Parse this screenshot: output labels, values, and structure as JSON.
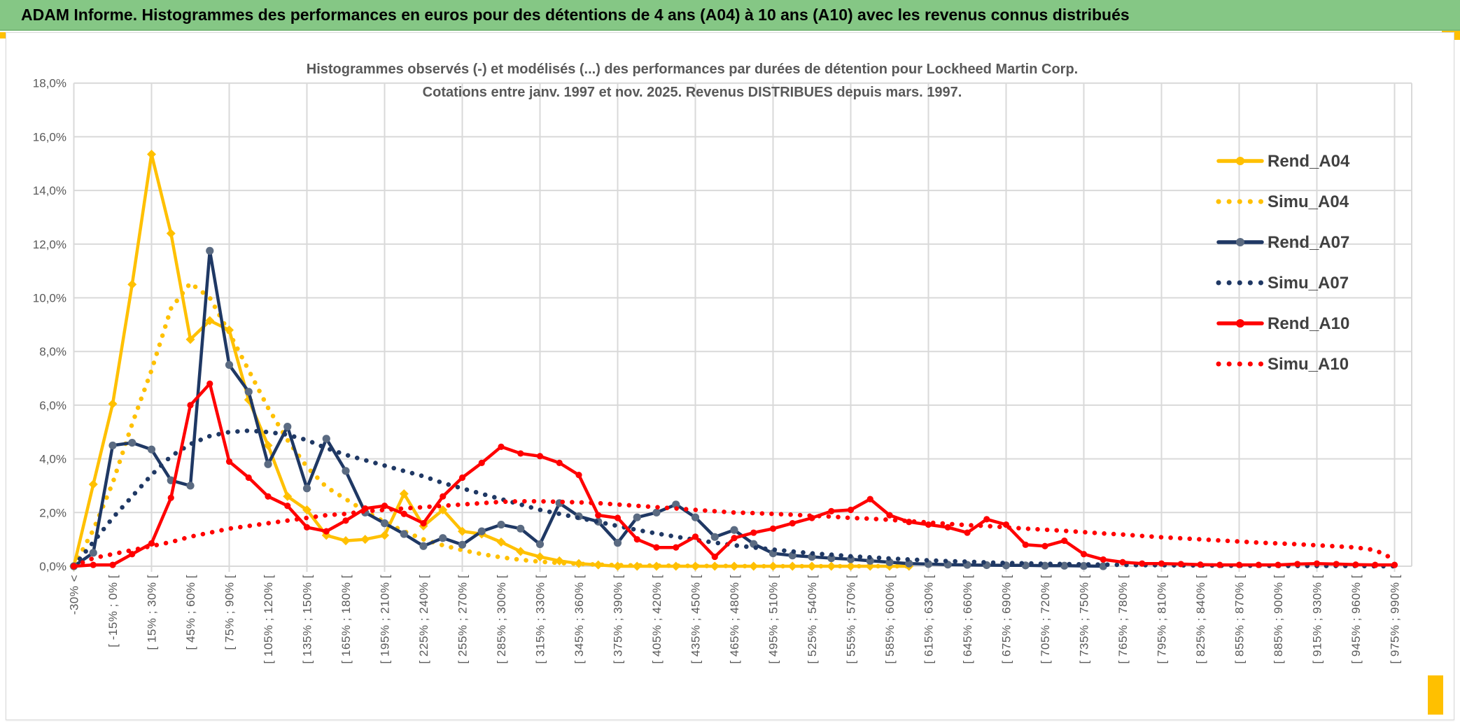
{
  "header": {
    "title": "ADAM Informe. Histogrammes des performances en euros pour des détentions de 4 ans (A04) à 10 ans (A10) avec les revenus connus distribués"
  },
  "colors": {
    "header_bg": "#85C785",
    "gold": "#FFC000",
    "navy": "#1F3864",
    "red": "#FF0000",
    "navy_marker": "#5B6B82",
    "grid": "#D9D9D9",
    "axis_text": "#595959",
    "legend_text": "#404040",
    "subtitle_text": "#595959"
  },
  "chart_data": {
    "type": "line",
    "title_line1": "Histogrammes observés (-) et modélisés (...) des performances par durées de détention pour Lockheed Martin Corp.",
    "title_line2": "Cotations entre janv. 1997 et nov. 2025. Revenus DISTRIBUES depuis mars. 1997.",
    "grid": true,
    "legend_position": "right",
    "ylim": [
      0,
      18
    ],
    "y_tick_labels": [
      "0,0%",
      "2,0%",
      "4,0%",
      "6,0%",
      "8,0%",
      "10,0%",
      "12,0%",
      "14,0%",
      "16,0%",
      "18,0%"
    ],
    "x_bin_labels": [
      "-30% <",
      "[ -15% ; 0% [",
      "[ 15% ; 30% [",
      "[ 45% ; 60% [",
      "[ 75% ; 90% [",
      "[ 105% ; 120% [",
      "[ 135% ; 150% [",
      "[ 165% ; 180% [",
      "[ 195% ; 210% [",
      "[ 225% ; 240% [",
      "[ 255% ; 270% [",
      "[ 285% ; 300% [",
      "[ 315% ; 330% [",
      "[ 345% ; 360% [",
      "[ 375% ; 390% [",
      "[ 405% ; 420% [",
      "[ 435% ; 450% [",
      "[ 465% ; 480% [",
      "[ 495% ; 510% [",
      "[ 525% ; 540% [",
      "[ 555% ; 570% [",
      "[ 585% ; 600% [",
      "[ 615% ; 630% [",
      "[ 645% ; 660% [",
      "[ 675% ; 690% [",
      "[ 705% ; 720% [",
      "[ 735% ; 750% [",
      "[ 765% ; 780% [",
      "[ 795% ; 810% [",
      "[ 825% ; 840% [",
      "[ 855% ; 870% [",
      "[ 885% ; 900% [",
      "[ 915% ; 930% [",
      "[ 945% ; 960% [",
      "[ 975% ; 990% ["
    ],
    "series": [
      {
        "name": "Rend_A04",
        "color": "gold",
        "style": "solid",
        "marker": "diamond",
        "values": [
          0,
          3.05,
          6.05,
          10.5,
          15.35,
          12.4,
          8.45,
          9.15,
          8.8,
          6.2,
          4.5,
          2.6,
          2.1,
          1.15,
          0.95,
          1.0,
          1.15,
          2.7,
          1.5,
          2.1,
          1.3,
          1.2,
          0.9,
          0.55,
          0.35,
          0.2,
          0.1,
          0.05,
          0,
          0,
          0,
          0,
          0,
          0,
          0,
          0,
          0,
          0,
          0,
          0,
          0,
          0,
          0,
          0,
          null,
          null,
          null,
          null,
          null,
          null,
          null,
          null,
          null,
          null,
          null,
          null,
          null,
          null,
          null,
          null,
          null,
          null,
          null,
          null,
          null,
          null,
          null,
          null,
          null
        ]
      },
      {
        "name": "Simu_A04",
        "color": "gold",
        "style": "dotted",
        "marker": "none",
        "values": [
          0,
          1.35,
          3.1,
          5.3,
          7.3,
          9.6,
          10.55,
          10.0,
          8.7,
          7.3,
          5.9,
          4.7,
          3.7,
          2.95,
          2.5,
          2.05,
          1.65,
          1.3,
          1.0,
          0.78,
          0.6,
          0.45,
          0.33,
          0.24,
          0.17,
          0.12,
          0.09,
          0.06,
          0.04,
          0.03,
          0.02,
          0.02,
          0.01,
          0.01,
          0.01,
          0,
          0,
          0,
          0,
          0,
          0,
          0,
          0,
          0,
          null,
          null,
          null,
          null,
          null,
          null,
          null,
          null,
          null,
          null,
          null,
          null,
          null,
          null,
          null,
          null,
          null,
          null,
          null,
          null,
          null,
          null,
          null,
          null,
          null
        ]
      },
      {
        "name": "Rend_A07",
        "color": "navy",
        "style": "solid",
        "marker": "circle-gray",
        "values": [
          0,
          0.5,
          4.5,
          4.6,
          4.35,
          3.2,
          3.0,
          11.75,
          7.5,
          6.5,
          3.8,
          5.2,
          2.9,
          4.75,
          3.55,
          2.0,
          1.6,
          1.2,
          0.75,
          1.05,
          0.8,
          1.3,
          1.55,
          1.4,
          0.82,
          2.35,
          1.86,
          1.66,
          0.87,
          1.82,
          2.0,
          2.3,
          1.82,
          1.09,
          1.35,
          0.83,
          0.48,
          0.4,
          0.35,
          0.3,
          0.26,
          0.2,
          0.15,
          0.1,
          0.08,
          0.06,
          0.05,
          0.04,
          0.03,
          0.03,
          0.02,
          0.02,
          0.01,
          0,
          null,
          null,
          null,
          null,
          null,
          null,
          null,
          null,
          null,
          null,
          null,
          null,
          null,
          null,
          null
        ]
      },
      {
        "name": "Simu_A07",
        "color": "navy",
        "style": "dotted",
        "marker": "none",
        "values": [
          0,
          0.9,
          1.8,
          2.6,
          3.4,
          4.1,
          4.55,
          4.85,
          5.0,
          5.05,
          5.0,
          4.9,
          4.7,
          4.4,
          4.15,
          3.95,
          3.75,
          3.55,
          3.35,
          3.1,
          2.9,
          2.7,
          2.5,
          2.3,
          2.1,
          1.95,
          1.8,
          1.65,
          1.5,
          1.35,
          1.22,
          1.1,
          0.98,
          0.88,
          0.78,
          0.7,
          0.62,
          0.55,
          0.48,
          0.43,
          0.37,
          0.33,
          0.29,
          0.25,
          0.22,
          0.19,
          0.17,
          0.14,
          0.12,
          0.11,
          0.09,
          0.08,
          0.07,
          0.06,
          0.05,
          0.04,
          0.04,
          0.03,
          0.03,
          0.02,
          0.02,
          0.02,
          0.01,
          0.01,
          0.01,
          0.01,
          0.01,
          0,
          0
        ]
      },
      {
        "name": "Rend_A10",
        "color": "red",
        "style": "solid",
        "marker": "circle",
        "values": [
          0,
          0.05,
          0.05,
          0.45,
          0.85,
          2.55,
          6.0,
          6.8,
          3.9,
          3.3,
          2.6,
          2.25,
          1.45,
          1.3,
          1.7,
          2.15,
          2.25,
          1.95,
          1.6,
          2.6,
          3.3,
          3.85,
          4.45,
          4.2,
          4.1,
          3.85,
          3.4,
          1.9,
          1.8,
          1.0,
          0.7,
          0.7,
          1.1,
          0.35,
          1.05,
          1.25,
          1.4,
          1.6,
          1.8,
          2.05,
          2.1,
          2.5,
          1.9,
          1.65,
          1.55,
          1.45,
          1.25,
          1.75,
          1.55,
          0.8,
          0.75,
          0.95,
          0.45,
          0.25,
          0.15,
          0.1,
          0.1,
          0.08,
          0.06,
          0.05,
          0.05,
          0.05,
          0.05,
          0.08,
          0.1,
          0.08,
          0.06,
          0.05,
          0.05
        ]
      },
      {
        "name": "Simu_A10",
        "color": "red",
        "style": "dotted",
        "marker": "none",
        "values": [
          0,
          0.3,
          0.45,
          0.6,
          0.75,
          0.9,
          1.1,
          1.25,
          1.4,
          1.5,
          1.6,
          1.7,
          1.8,
          1.9,
          1.95,
          2.05,
          2.1,
          2.15,
          2.2,
          2.25,
          2.3,
          2.35,
          2.4,
          2.42,
          2.42,
          2.4,
          2.38,
          2.35,
          2.3,
          2.25,
          2.2,
          2.15,
          2.1,
          2.05,
          2.0,
          1.98,
          1.95,
          1.92,
          1.88,
          1.85,
          1.8,
          1.77,
          1.73,
          1.68,
          1.63,
          1.58,
          1.53,
          1.5,
          1.45,
          1.4,
          1.36,
          1.32,
          1.27,
          1.22,
          1.18,
          1.13,
          1.08,
          1.04,
          1.0,
          0.96,
          0.92,
          0.88,
          0.85,
          0.82,
          0.78,
          0.74,
          0.7,
          0.6,
          0.25
        ]
      }
    ],
    "legend": [
      "Rend_A04",
      "Simu_A04",
      "Rend_A07",
      "Simu_A07",
      "Rend_A10",
      "Simu_A10"
    ]
  }
}
